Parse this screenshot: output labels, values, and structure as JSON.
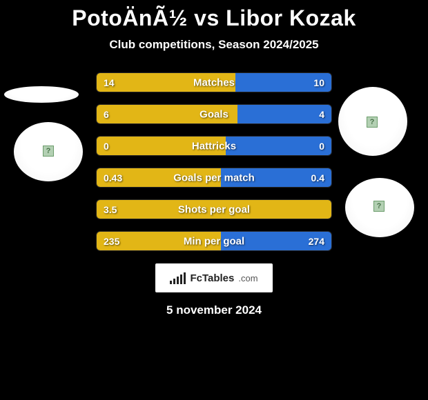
{
  "title": "PotoÄnÃ½ vs Libor Kozak",
  "subtitle": "Club competitions, Season 2024/2025",
  "date": "5 november 2024",
  "bars": [
    {
      "label": "Matches",
      "left": "14",
      "right": "10",
      "left_pct": 59,
      "right_pct": 41
    },
    {
      "label": "Goals",
      "left": "6",
      "right": "4",
      "left_pct": 60,
      "right_pct": 40
    },
    {
      "label": "Hattricks",
      "left": "0",
      "right": "0",
      "left_pct": 55,
      "right_pct": 45
    },
    {
      "label": "Goals per match",
      "left": "0.43",
      "right": "0.4",
      "left_pct": 53,
      "right_pct": 47
    },
    {
      "label": "Shots per goal",
      "left": "3.5",
      "right": "",
      "left_pct": 100,
      "right_pct": 0
    },
    {
      "label": "Min per goal",
      "left": "235",
      "right": "274",
      "left_pct": 53,
      "right_pct": 47
    }
  ],
  "colors": {
    "left": "#e2b616",
    "right": "#2a6fd6",
    "background": "#000000",
    "text": "#ffffff"
  },
  "badge": {
    "brand": "FcTables",
    "domain": ".com"
  },
  "mini_chart_heights": [
    5,
    8,
    11,
    14,
    17
  ]
}
